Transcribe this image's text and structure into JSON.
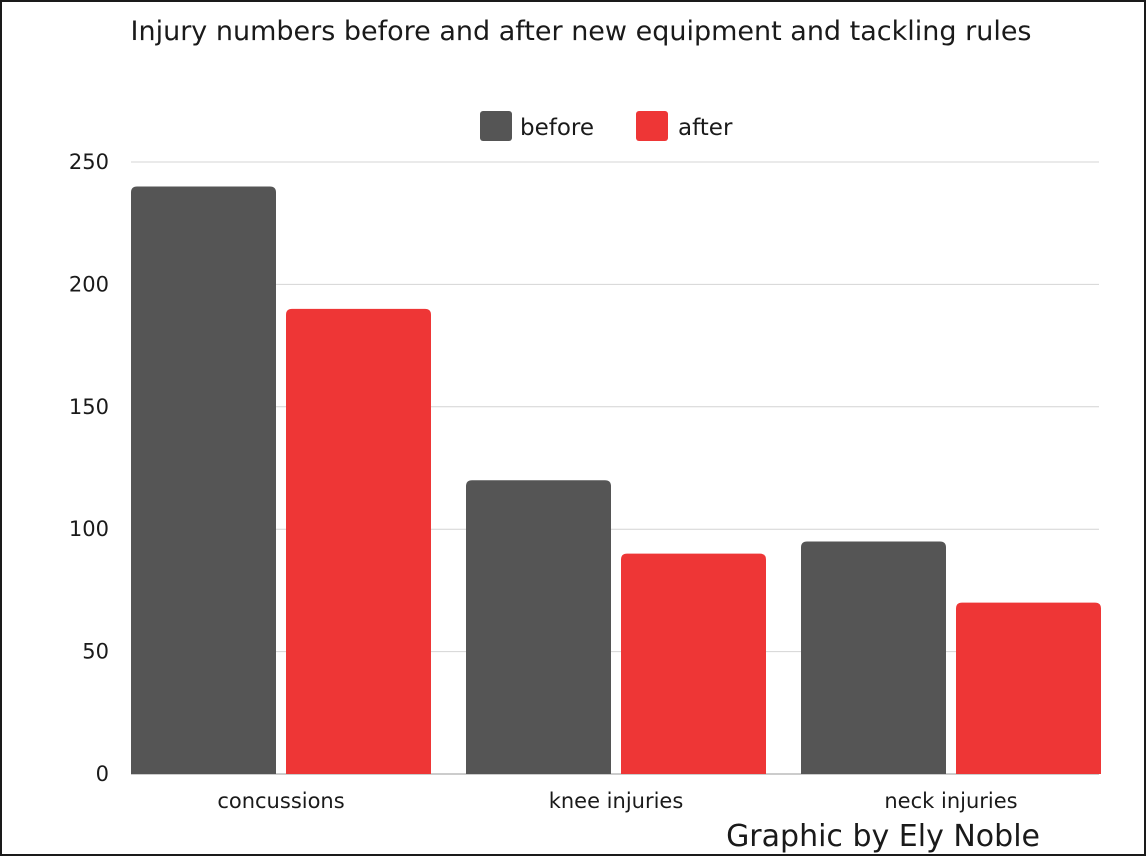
{
  "chart_data": {
    "type": "bar",
    "title": "Injury numbers before and after new equipment and tackling rules",
    "categories": [
      "concussions",
      "knee injuries",
      "neck injuries"
    ],
    "series": [
      {
        "name": "before",
        "values": [
          240,
          120,
          95
        ],
        "color": "#555555"
      },
      {
        "name": "after",
        "values": [
          190,
          90,
          70
        ],
        "color": "#ee3636"
      }
    ],
    "xlabel": "",
    "ylabel": "",
    "ylim": [
      0,
      250
    ],
    "yticks": [
      0,
      50,
      100,
      150,
      200,
      250
    ],
    "grid": true,
    "legend_position": "top-center"
  },
  "credit": "Graphic by Ely Noble"
}
